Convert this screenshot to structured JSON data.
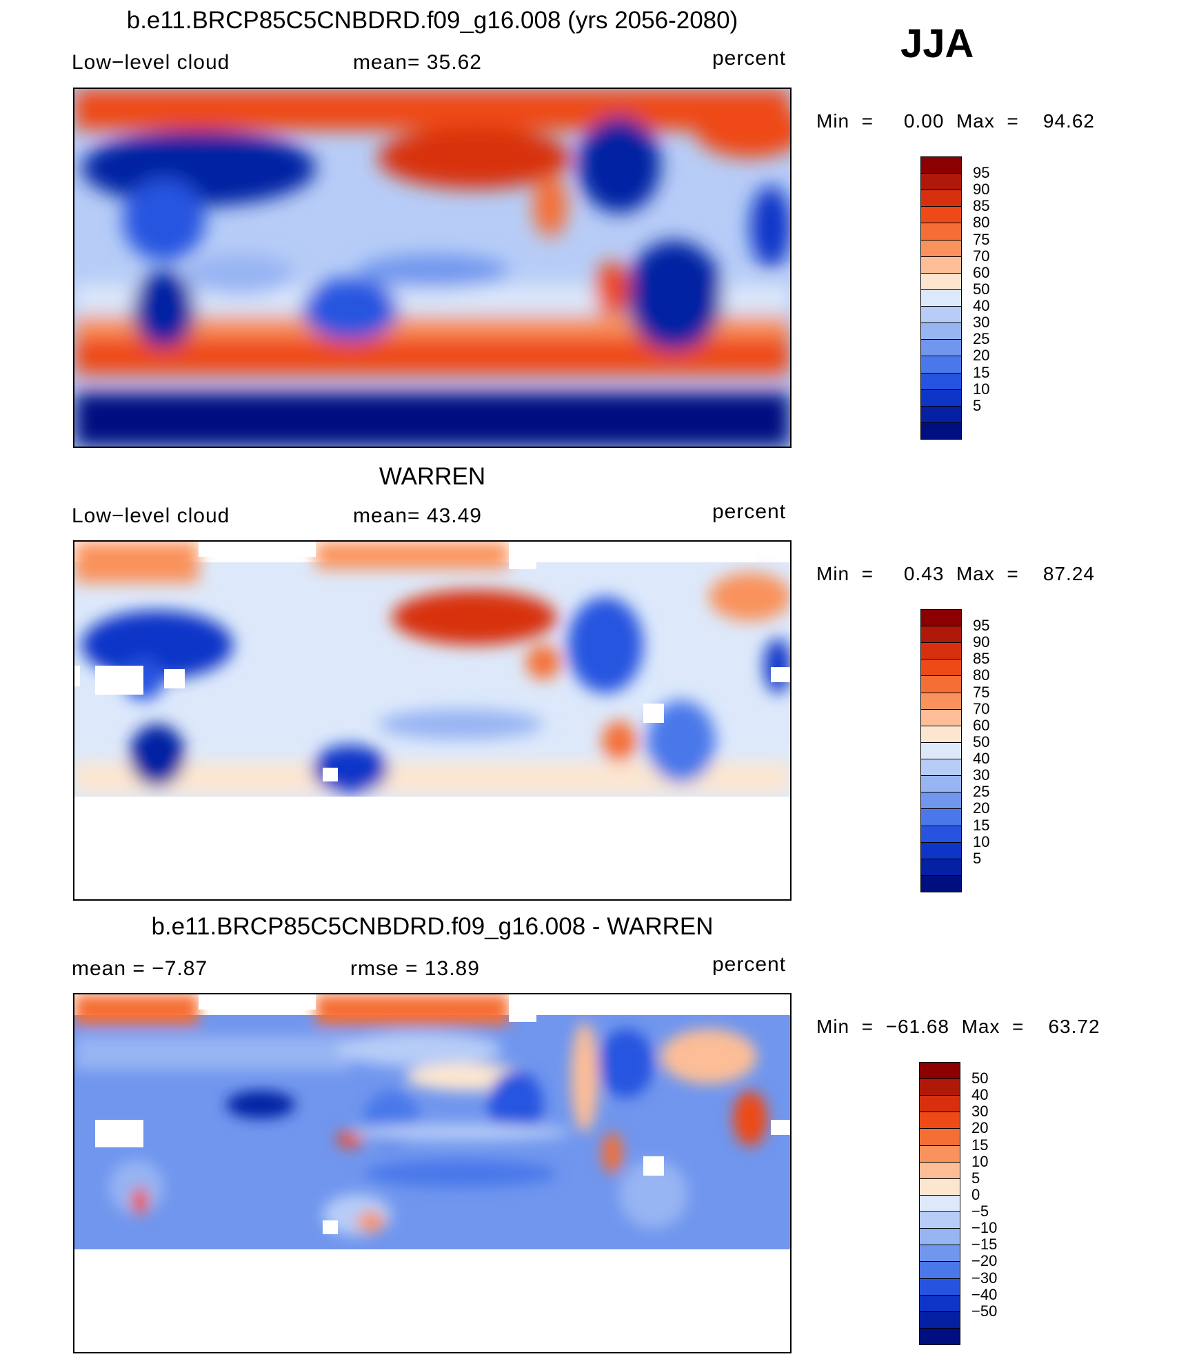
{
  "season": "JJA",
  "panels": [
    {
      "title": "b.e11.BRCP85C5CNBDRD.f09_g16.008 (yrs 2056-2080)",
      "left_label": "Low−level  cloud",
      "mid_label": "mean=   35.62",
      "units": "percent",
      "minmax": "Min  =     0.00  Max  =    94.62",
      "colorbar": {
        "colors": [
          "#8b0000",
          "#b0180a",
          "#d8300f",
          "#ee4a18",
          "#f56e36",
          "#f9925c",
          "#fcbd97",
          "#fde6d0",
          "#dde9fb",
          "#b7cdf7",
          "#97b4f3",
          "#7096ee",
          "#4a78ea",
          "#2654e0",
          "#0e35c8",
          "#0520a3",
          "#000f80"
        ],
        "ticks": [
          "95",
          "90",
          "85",
          "80",
          "75",
          "70",
          "60",
          "50",
          "40",
          "30",
          "25",
          "20",
          "15",
          "10",
          "5"
        ]
      }
    },
    {
      "title": "WARREN",
      "left_label": "Low−level  cloud",
      "mid_label": "mean=   43.49",
      "units": "percent",
      "minmax": "Min  =     0.43  Max  =    87.24",
      "colorbar": {
        "colors": [
          "#8b0000",
          "#b0180a",
          "#d8300f",
          "#ee4a18",
          "#f56e36",
          "#f9925c",
          "#fcbd97",
          "#fde6d0",
          "#dde9fb",
          "#b7cdf7",
          "#97b4f3",
          "#7096ee",
          "#4a78ea",
          "#2654e0",
          "#0e35c8",
          "#0520a3",
          "#000f80"
        ],
        "ticks": [
          "95",
          "90",
          "85",
          "80",
          "75",
          "70",
          "60",
          "50",
          "40",
          "30",
          "25",
          "20",
          "15",
          "10",
          "5"
        ]
      }
    },
    {
      "title": "b.e11.BRCP85C5CNBDRD.f09_g16.008 - WARREN",
      "left_label": "mean  =   −7.87",
      "mid_label": "rmse  =    13.89",
      "units": "percent",
      "minmax": "Min  =  −61.68  Max  =    63.72",
      "colorbar": {
        "colors": [
          "#8b0000",
          "#b0180a",
          "#d8300f",
          "#ee4a18",
          "#f56e36",
          "#f9925c",
          "#fcbd97",
          "#fde6d0",
          "#dde9fb",
          "#b7cdf7",
          "#97b4f3",
          "#7096ee",
          "#4a78ea",
          "#2654e0",
          "#0e35c8",
          "#0520a3",
          "#000f80"
        ],
        "ticks": [
          "50",
          "40",
          "30",
          "20",
          "15",
          "10",
          "5",
          "0",
          "−5",
          "−10",
          "−15",
          "−20",
          "−30",
          "−40",
          "−50"
        ]
      }
    }
  ]
}
